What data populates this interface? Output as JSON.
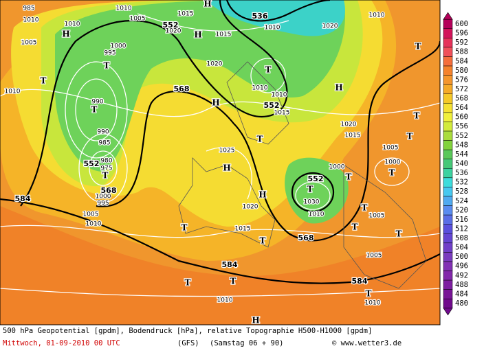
{
  "map": {
    "labels": [
      "985",
      "1010",
      "1005",
      "1010",
      "H",
      "1010",
      "1005",
      "552",
      "1020",
      "1015",
      "H",
      "1015",
      "H",
      "536",
      "1010",
      "1020",
      "1010",
      "T",
      "T",
      "1000",
      "995",
      "T",
      "1010",
      "1020",
      "T",
      "1010",
      "1010",
      "H",
      "568",
      "990",
      "T",
      "H",
      "552",
      "1015",
      "990",
      "985",
      "1020",
      "1015",
      "T",
      "T",
      "T",
      "1025",
      "1005",
      "552",
      "980",
      "975",
      "T",
      "H",
      "1000",
      "1000",
      "T",
      "552",
      "T",
      "T",
      "568",
      "584",
      "1000",
      "995",
      "1030",
      "H",
      "1020",
      "1005",
      "1010",
      "1010",
      "T",
      "1005",
      "T",
      "1015",
      "T",
      "T",
      "568",
      "T",
      "1005",
      "584",
      "T",
      "T",
      "584",
      "T",
      "1010",
      "1010",
      "H"
    ]
  },
  "colorbar": {
    "values": [
      600,
      596,
      592,
      588,
      584,
      580,
      576,
      572,
      568,
      564,
      560,
      556,
      552,
      548,
      544,
      540,
      536,
      532,
      528,
      524,
      520,
      516,
      512,
      508,
      504,
      500,
      496,
      492,
      488,
      484,
      480
    ],
    "colors": [
      "#b4005a",
      "#d2145a",
      "#e6325a",
      "#f0505a",
      "#f56e3c",
      "#f5822d",
      "#f5962d",
      "#f5aa28",
      "#f5c828",
      "#f5e132",
      "#f0f03c",
      "#d2eb3c",
      "#aadc3c",
      "#82d23c",
      "#5ac85a",
      "#46c878",
      "#3cd2a0",
      "#3cdcdc",
      "#46c8f0",
      "#50aaf0",
      "#5a8cf0",
      "#5a6ee6",
      "#5a50dc",
      "#6446d2",
      "#7040c8",
      "#7a3cbe",
      "#8232b4",
      "#8228aa",
      "#7d1ea0",
      "#781496",
      "#700a8c"
    ]
  },
  "footer": {
    "line1": "500 hPa Geopotential [gpdm], Bodendruck [hPa], relative Topographie H500-H1000 [gpdm]",
    "date": "Mittwoch, 01-09-2010  00 UTC",
    "model": "(GFS)",
    "forecast": "(Samstag 06 + 90)",
    "credit": "© www.wetter3.de"
  }
}
